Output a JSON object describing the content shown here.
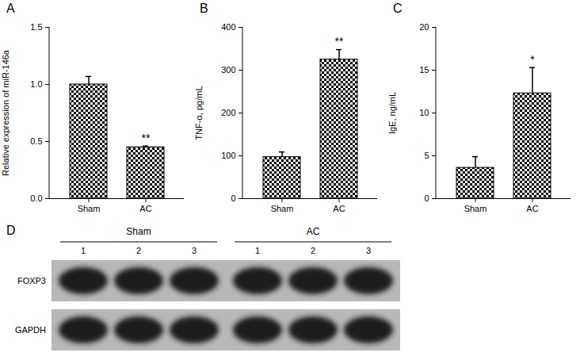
{
  "chart_data": [
    {
      "type": "bar",
      "title": "A",
      "categories": [
        "Sham",
        "AC"
      ],
      "values": [
        1.0,
        0.45
      ],
      "errors": [
        0.07,
        0.01
      ],
      "y_label": "Relative expression of miR-146a",
      "ylim": [
        0,
        1.5
      ],
      "yticks": [
        {
          "value": 0,
          "label": "0.0"
        },
        {
          "value": 0.5,
          "label": "0.5"
        },
        {
          "value": 1,
          "label": "1.0"
        },
        {
          "value": 1.5,
          "label": "1.5"
        }
      ],
      "color": "#000000",
      "annotations": [
        {
          "category": "AC",
          "text": "**"
        }
      ]
    },
    {
      "type": "bar",
      "title": "B",
      "categories": [
        "Sham",
        "AC"
      ],
      "values": [
        97,
        325
      ],
      "errors": [
        12,
        23
      ],
      "y_label": "TNF-α, pg/mL",
      "ylim": [
        0,
        400
      ],
      "yticks": [
        0,
        100,
        200,
        300,
        400
      ],
      "color": "#000000",
      "annotations": [
        {
          "category": "AC",
          "text": "**"
        }
      ]
    },
    {
      "type": "bar",
      "title": "C",
      "categories": [
        "Sham",
        "AC"
      ],
      "values": [
        3.6,
        12.3
      ],
      "errors": [
        1.3,
        3.0
      ],
      "y_label": "IgE, ng/mL",
      "ylim": [
        0,
        20
      ],
      "yticks": [
        0,
        5,
        10,
        15,
        20
      ],
      "color": "#000000",
      "annotations": [
        {
          "category": "AC",
          "text": "*"
        }
      ]
    }
  ],
  "blot": {
    "title": "D",
    "groups": [
      {
        "name": "Sham",
        "lanes": [
          "1",
          "2",
          "3"
        ]
      },
      {
        "name": "AC",
        "lanes": [
          "1",
          "2",
          "3"
        ]
      }
    ],
    "rows": [
      "FOXP3",
      "GAPDH"
    ]
  }
}
